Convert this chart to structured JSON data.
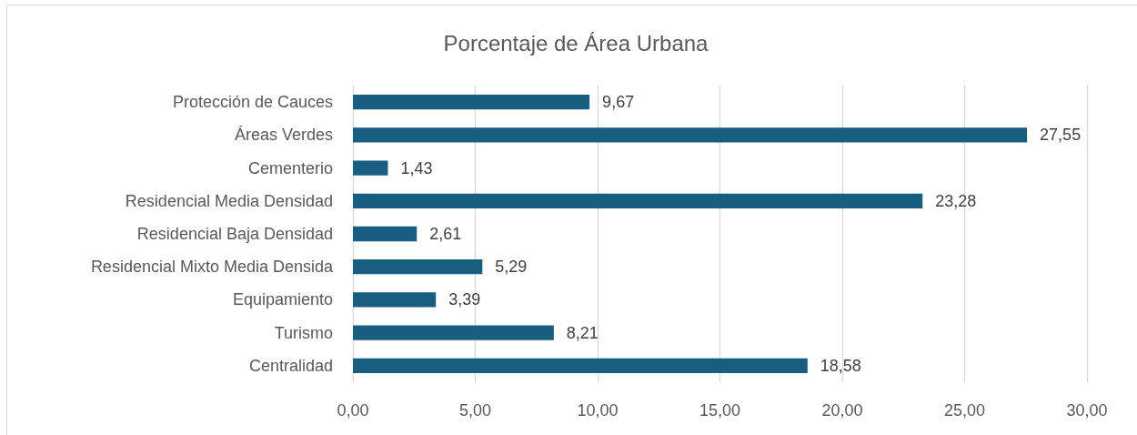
{
  "chart_data": {
    "type": "bar",
    "orientation": "horizontal",
    "title": "Porcentaje de Área Urbana",
    "categories": [
      "Protección de Cauces",
      "Áreas Verdes",
      "Cementerio",
      "Residencial Media Densidad",
      "Residencial Baja Densidad",
      "Residencial Mixto Media Densida",
      "Equipamiento",
      "Turismo",
      "Centralidad"
    ],
    "values": [
      9.67,
      27.55,
      1.43,
      23.28,
      2.61,
      5.29,
      3.39,
      8.21,
      18.58
    ],
    "value_labels": [
      "9,67",
      "27,55",
      "1,43",
      "23,28",
      "2,61",
      "5,29",
      "3,39",
      "8,21",
      "18,58"
    ],
    "color": "#175e80",
    "xlim": [
      0,
      30
    ],
    "xticks": [
      {
        "value": 0,
        "label": "0,00"
      },
      {
        "value": 5,
        "label": "5,00"
      },
      {
        "value": 10,
        "label": "10,00"
      },
      {
        "value": 15,
        "label": "15,00"
      },
      {
        "value": 20,
        "label": "20,00"
      },
      {
        "value": 25,
        "label": "25,00"
      },
      {
        "value": 30,
        "label": "30,00"
      }
    ],
    "grid": "x"
  }
}
